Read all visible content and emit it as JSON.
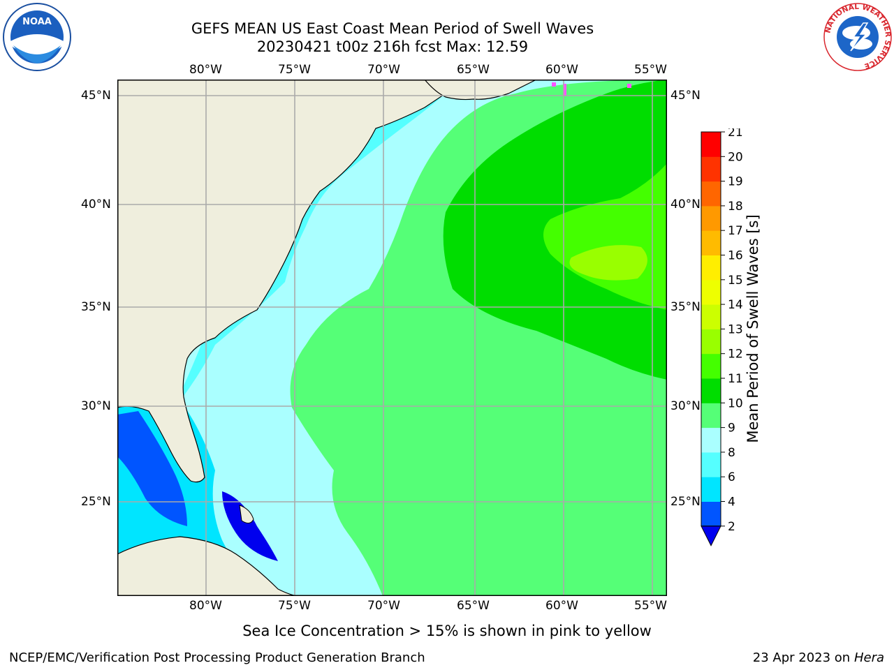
{
  "header": {
    "title_line1": "GEFS MEAN US East Coast Mean Period of Swell Waves",
    "title_line2": "20230421 t00z 216h fcst   Max: 12.59"
  },
  "map": {
    "lon_labels": [
      "80°W",
      "75°W",
      "70°W",
      "65°W",
      "60°W",
      "55°W"
    ],
    "lat_labels": [
      "45°N",
      "40°N",
      "35°N",
      "30°N",
      "25°N"
    ],
    "lon_range": [
      -85,
      -54
    ],
    "lat_range": [
      20.5,
      45.8
    ],
    "land_color": "#efeedd"
  },
  "colorbar": {
    "label": "Mean Period of Swell Waves [s]",
    "ticks": [
      "2",
      "4",
      "6",
      "8",
      "9",
      "10",
      "11",
      "12",
      "13",
      "14",
      "15",
      "16",
      "17",
      "18",
      "19",
      "20",
      "21"
    ],
    "colors": [
      "#0055ff",
      "#00e5ff",
      "#55ffff",
      "#aaffff",
      "#55ff77",
      "#00dd00",
      "#44ff00",
      "#99ff00",
      "#ccff00",
      "#eeff00",
      "#ffee00",
      "#ffbb00",
      "#ff9900",
      "#ff6600",
      "#ff3300",
      "#ff0000"
    ],
    "under_color": "#0000ee"
  },
  "notes": {
    "sea_ice": "Sea Ice Concentration > 15% is shown in pink to yellow"
  },
  "footer": {
    "left": "NCEP/EMC/Verification Post Processing Product Generation Branch",
    "right_prefix": "23 Apr 2023 on ",
    "right_host": "Hera"
  },
  "logos": {
    "noaa": "NOAA",
    "nws_ring": "NATIONAL WEATHER SERVICE"
  }
}
